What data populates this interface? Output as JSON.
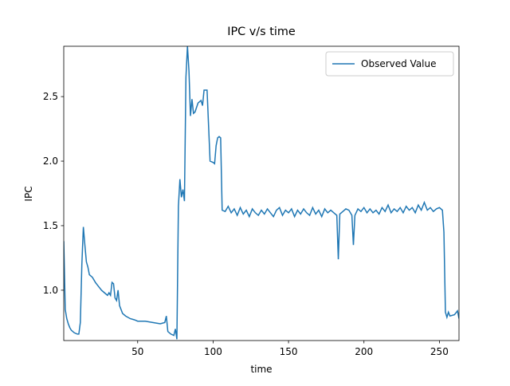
{
  "chart_data": {
    "type": "line",
    "title": "IPC v/s time",
    "x_label": "time",
    "y_label": "IPC",
    "x": [
      1,
      2,
      3,
      4,
      5,
      6,
      8,
      10,
      11,
      12,
      13,
      14,
      15,
      16,
      17,
      18,
      20,
      22,
      24,
      26,
      28,
      30,
      31,
      32,
      33,
      34,
      35,
      36,
      37,
      38,
      40,
      42,
      45,
      48,
      50,
      55,
      60,
      65,
      68,
      69,
      70,
      72,
      74,
      75,
      76,
      77,
      78,
      79,
      80,
      81,
      82,
      83,
      84,
      85,
      86,
      87,
      88,
      90,
      92,
      93,
      94,
      96,
      98,
      100,
      101,
      102,
      103,
      104,
      105,
      106,
      108,
      110,
      112,
      114,
      116,
      118,
      120,
      122,
      124,
      126,
      128,
      130,
      132,
      134,
      136,
      138,
      140,
      142,
      144,
      146,
      148,
      150,
      152,
      154,
      156,
      158,
      160,
      162,
      164,
      166,
      168,
      170,
      172,
      174,
      176,
      178,
      180,
      182,
      183,
      184,
      186,
      188,
      190,
      192,
      193,
      194,
      196,
      198,
      200,
      202,
      204,
      206,
      208,
      210,
      212,
      214,
      216,
      218,
      220,
      222,
      224,
      226,
      228,
      230,
      232,
      234,
      236,
      238,
      240,
      242,
      244,
      246,
      248,
      250,
      252,
      253,
      254,
      255,
      256,
      257,
      260,
      262,
      263
    ],
    "series": [
      {
        "name": "Observed Value",
        "color": "#1f77b4",
        "values": [
          1.38,
          0.85,
          0.78,
          0.74,
          0.71,
          0.69,
          0.67,
          0.66,
          0.66,
          0.75,
          1.2,
          1.49,
          1.35,
          1.22,
          1.18,
          1.12,
          1.1,
          1.06,
          1.03,
          1.0,
          0.98,
          0.96,
          0.98,
          0.96,
          1.06,
          1.05,
          0.94,
          0.92,
          1.0,
          0.88,
          0.82,
          0.8,
          0.78,
          0.77,
          0.76,
          0.76,
          0.75,
          0.74,
          0.75,
          0.8,
          0.68,
          0.66,
          0.65,
          0.7,
          0.62,
          1.65,
          1.86,
          1.72,
          1.78,
          1.69,
          2.65,
          2.89,
          2.7,
          2.35,
          2.48,
          2.37,
          2.38,
          2.45,
          2.47,
          2.43,
          2.55,
          2.55,
          2.0,
          1.99,
          1.98,
          2.12,
          2.18,
          2.19,
          2.18,
          1.62,
          1.61,
          1.65,
          1.6,
          1.63,
          1.58,
          1.64,
          1.59,
          1.62,
          1.57,
          1.63,
          1.6,
          1.58,
          1.62,
          1.59,
          1.63,
          1.6,
          1.57,
          1.62,
          1.64,
          1.58,
          1.62,
          1.6,
          1.63,
          1.57,
          1.62,
          1.59,
          1.63,
          1.6,
          1.58,
          1.64,
          1.59,
          1.62,
          1.57,
          1.63,
          1.6,
          1.62,
          1.6,
          1.58,
          1.24,
          1.59,
          1.61,
          1.63,
          1.62,
          1.58,
          1.35,
          1.58,
          1.63,
          1.61,
          1.64,
          1.6,
          1.63,
          1.6,
          1.62,
          1.59,
          1.64,
          1.61,
          1.66,
          1.6,
          1.63,
          1.61,
          1.64,
          1.6,
          1.65,
          1.62,
          1.64,
          1.6,
          1.66,
          1.62,
          1.68,
          1.62,
          1.64,
          1.61,
          1.63,
          1.64,
          1.62,
          1.45,
          0.83,
          0.79,
          0.83,
          0.8,
          0.81,
          0.84,
          0.78
        ]
      }
    ],
    "xlim": [
      1,
      263
    ],
    "ylim": [
      0.61,
      2.89
    ],
    "xticks": [
      50,
      100,
      150,
      200,
      250
    ],
    "yticks": [
      {
        "value": 1.0,
        "label": "1.0"
      },
      {
        "value": 1.5,
        "label": "1.5"
      },
      {
        "value": 2.0,
        "label": "2.0"
      },
      {
        "value": 2.5,
        "label": "2.5"
      }
    ],
    "legend": "upper right"
  }
}
